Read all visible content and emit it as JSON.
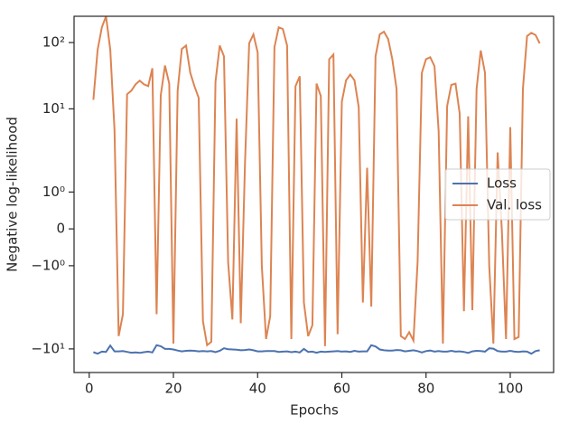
{
  "chart_data": {
    "type": "line",
    "xlabel": "Epochs",
    "ylabel": "Negative log-likelihood",
    "yscale": "symlog",
    "linthresh": 2,
    "xlim": [
      -3.6,
      110.3
    ],
    "xticks": [
      0,
      20,
      40,
      60,
      80,
      100
    ],
    "ylim": [
      -22.7,
      249
    ],
    "yticks": [
      {
        "value": -10,
        "label": "−10¹"
      },
      {
        "value": -1,
        "label": "−10⁰"
      },
      0,
      {
        "value": 1,
        "label": "10⁰"
      },
      {
        "value": 10,
        "label": "10¹"
      },
      {
        "value": 100,
        "label": "10²"
      }
    ],
    "grid": false,
    "legend": "center right",
    "x": [
      1,
      2,
      3,
      4,
      5,
      6,
      7,
      8,
      9,
      10,
      11,
      12,
      13,
      14,
      15,
      16,
      17,
      18,
      19,
      20,
      21,
      22,
      23,
      24,
      25,
      26,
      27,
      28,
      29,
      30,
      31,
      32,
      33,
      34,
      35,
      36,
      37,
      38,
      39,
      40,
      41,
      42,
      43,
      44,
      45,
      46,
      47,
      48,
      49,
      50,
      51,
      52,
      53,
      54,
      55,
      56,
      57,
      58,
      59,
      60,
      61,
      62,
      63,
      64,
      65,
      66,
      67,
      68,
      69,
      70,
      71,
      72,
      73,
      74,
      75,
      76,
      77,
      78,
      79,
      80,
      81,
      82,
      83,
      84,
      85,
      86,
      87,
      88,
      89,
      90,
      91,
      92,
      93,
      94,
      95,
      96,
      97,
      98,
      99,
      100,
      101,
      102,
      103,
      104,
      105,
      106,
      107
    ],
    "series": [
      {
        "name": "Loss",
        "color": "#4c72b0",
        "values": [
          -11.2,
          -11.8,
          -11.0,
          -11.1,
          -8.9,
          -10.9,
          -10.9,
          -10.8,
          -11.1,
          -11.4,
          -11.3,
          -11.5,
          -11.2,
          -11.0,
          -11.3,
          -8.8,
          -9.1,
          -10.0,
          -10.0,
          -10.2,
          -10.6,
          -10.9,
          -10.7,
          -10.6,
          -10.7,
          -10.9,
          -10.8,
          -10.9,
          -10.8,
          -11.2,
          -10.7,
          -9.8,
          -10.1,
          -10.2,
          -10.3,
          -10.5,
          -10.4,
          -10.2,
          -10.5,
          -10.9,
          -10.9,
          -10.8,
          -10.8,
          -10.8,
          -11.1,
          -11.0,
          -10.9,
          -11.2,
          -11.0,
          -11.3,
          -10.0,
          -11.1,
          -11.0,
          -11.4,
          -11.0,
          -11.1,
          -11.0,
          -10.9,
          -10.8,
          -11.0,
          -10.9,
          -11.1,
          -10.7,
          -11.0,
          -10.9,
          -10.9,
          -8.8,
          -9.2,
          -10.2,
          -10.5,
          -10.6,
          -10.6,
          -10.4,
          -10.5,
          -10.9,
          -10.7,
          -10.5,
          -10.8,
          -11.3,
          -10.8,
          -10.6,
          -11.0,
          -10.8,
          -11.0,
          -11.0,
          -10.7,
          -11.0,
          -10.9,
          -11.1,
          -11.5,
          -10.9,
          -10.7,
          -10.8,
          -11.0,
          -9.8,
          -9.9,
          -10.8,
          -11.0,
          -11.0,
          -10.7,
          -11.0,
          -11.1,
          -10.9,
          -11.0,
          -11.8,
          -10.8,
          -10.5
        ]
      },
      {
        "name": "Val. loss",
        "color": "#dd8452",
        "values": [
          13.7,
          77.6,
          170,
          249,
          78,
          4.8,
          -6.4,
          -3.0,
          16.6,
          18.8,
          23.4,
          26.6,
          23.4,
          22,
          41,
          -3.0,
          16,
          45,
          24,
          -8.3,
          18.8,
          80,
          90,
          35,
          22,
          14.6,
          -3.8,
          -8.8,
          -7.8,
          25.6,
          90,
          62,
          -0.9,
          -3.6,
          7.1,
          -4.1,
          1.8,
          97,
          133,
          71,
          -1.0,
          -7.1,
          -3.2,
          85,
          170,
          160,
          90,
          -7.1,
          22,
          31,
          -2,
          -6.4,
          -4.4,
          24,
          15.6,
          -9.1,
          56,
          66,
          -6.0,
          12.8,
          27,
          33,
          27,
          10.6,
          -2,
          1.66,
          -2.3,
          62,
          133,
          146,
          113,
          56,
          20,
          -6.4,
          -7.1,
          -5.6,
          -7.5,
          -0.9,
          35,
          56,
          60,
          44,
          4.6,
          -8.3,
          11,
          23,
          24,
          8.5,
          -2.7,
          7.7,
          -2.6,
          20,
          76,
          35,
          -1.0,
          -8.3,
          2.2,
          -0.05,
          -7.1,
          5.3,
          -7.1,
          -6.6,
          20,
          125,
          140,
          130,
          97
        ]
      }
    ]
  }
}
